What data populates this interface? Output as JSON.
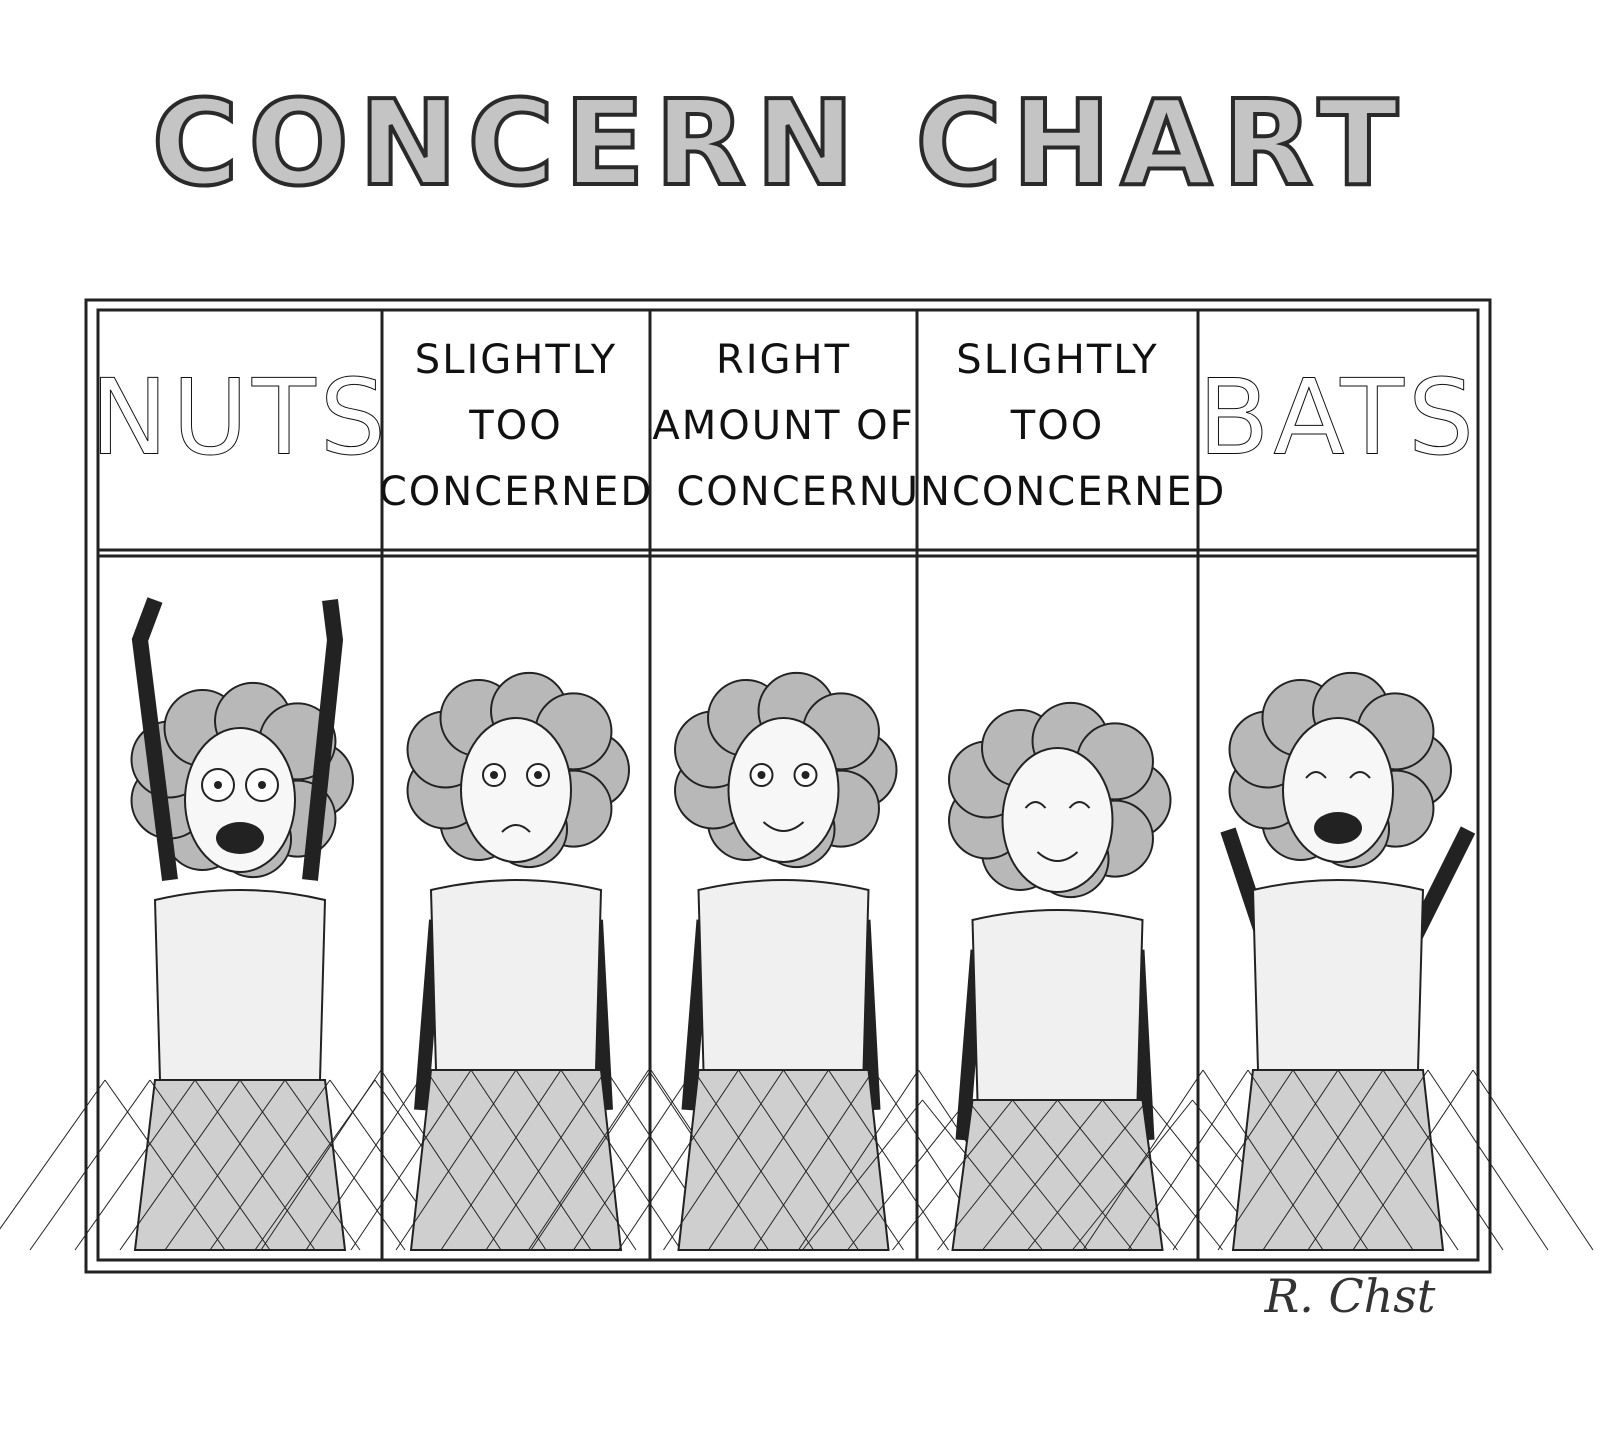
{
  "title": "CONCERN CHART",
  "columns": [
    {
      "lines": [
        "NUTS"
      ]
    },
    {
      "lines": [
        "SLIGHTLY",
        "TOO",
        "CONCERNED"
      ]
    },
    {
      "lines": [
        "RIGHT",
        "AMOUNT OF",
        "CONCERN"
      ]
    },
    {
      "lines": [
        "SLIGHTLY",
        "TOO",
        "UNCONCERNED"
      ]
    },
    {
      "lines": [
        "BATS"
      ]
    }
  ],
  "signature": "R. Chst"
}
